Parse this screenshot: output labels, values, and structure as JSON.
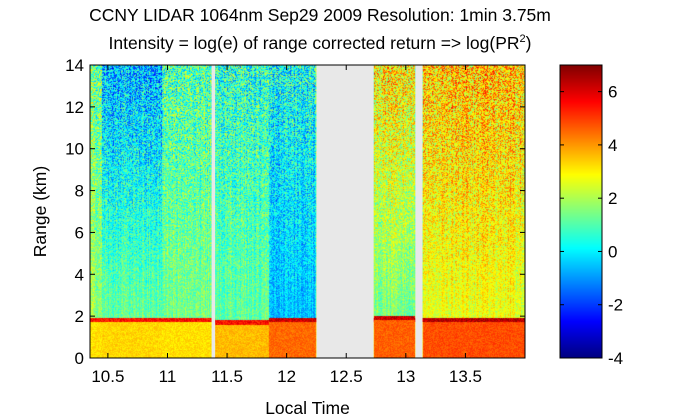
{
  "chart_data": {
    "type": "heatmap",
    "title": "CCNY LIDAR 1064nm Sep29 2009 Resolution: 1min 3.75m",
    "subtitle": {
      "prefix": "Intensity = log(e) of range corrected return => log(PR",
      "superscript": "2",
      "suffix": ")"
    },
    "xlabel": "Local Time",
    "ylabel": "Range (km)",
    "xlim": [
      10.35,
      14.0
    ],
    "ylim": [
      0,
      14
    ],
    "xticks": [
      10.5,
      11,
      11.5,
      12,
      12.5,
      13,
      13.5
    ],
    "xtick_labels": [
      "10.5",
      "11",
      "11.5",
      "12",
      "12.5",
      "13",
      "13.5"
    ],
    "yticks": [
      0,
      2,
      4,
      6,
      8,
      10,
      12,
      14
    ],
    "ytick_labels": [
      "0",
      "2",
      "4",
      "6",
      "8",
      "10",
      "12",
      "14"
    ],
    "colorbar": {
      "range": [
        -4,
        7
      ],
      "ticks": [
        -4,
        -2,
        0,
        2,
        4,
        6
      ],
      "tick_labels": [
        "-4",
        "-2",
        "0",
        "2",
        "4",
        "6"
      ],
      "colormap": "jet"
    },
    "missing_data_intervals": [
      [
        11.37,
        11.4
      ],
      [
        12.25,
        12.73
      ],
      [
        13.08,
        13.14
      ]
    ],
    "missing_data_color": "#e8e8e8",
    "regimes": [
      {
        "x": [
          10.35,
          10.45
        ],
        "boundary_layer_top_km": 1.7,
        "lower_value": 3.2,
        "upper_value": 1.8,
        "top_value": 1.4
      },
      {
        "x": [
          10.45,
          10.95
        ],
        "boundary_layer_top_km": 1.7,
        "lower_value": 3.3,
        "upper_value": 1.3,
        "top_value": -0.7
      },
      {
        "x": [
          10.95,
          11.37
        ],
        "boundary_layer_top_km": 1.7,
        "lower_value": 3.2,
        "upper_value": 1.4,
        "top_value": 0.9
      },
      {
        "x": [
          11.4,
          11.85
        ],
        "boundary_layer_top_km": 1.6,
        "lower_value": 3.6,
        "upper_value": 1.2,
        "top_value": 0.6
      },
      {
        "x": [
          11.85,
          12.25
        ],
        "boundary_layer_top_km": 1.7,
        "lower_value": 4.5,
        "upper_value": -0.6,
        "top_value": 0.3
      },
      {
        "x": [
          12.73,
          13.08
        ],
        "boundary_layer_top_km": 1.8,
        "lower_value": 4.6,
        "upper_value": 1.4,
        "top_value": 3.2
      },
      {
        "x": [
          13.14,
          14.0
        ],
        "boundary_layer_top_km": 1.7,
        "lower_value": 4.8,
        "upper_value": 2.6,
        "top_value": 3.5
      }
    ]
  }
}
